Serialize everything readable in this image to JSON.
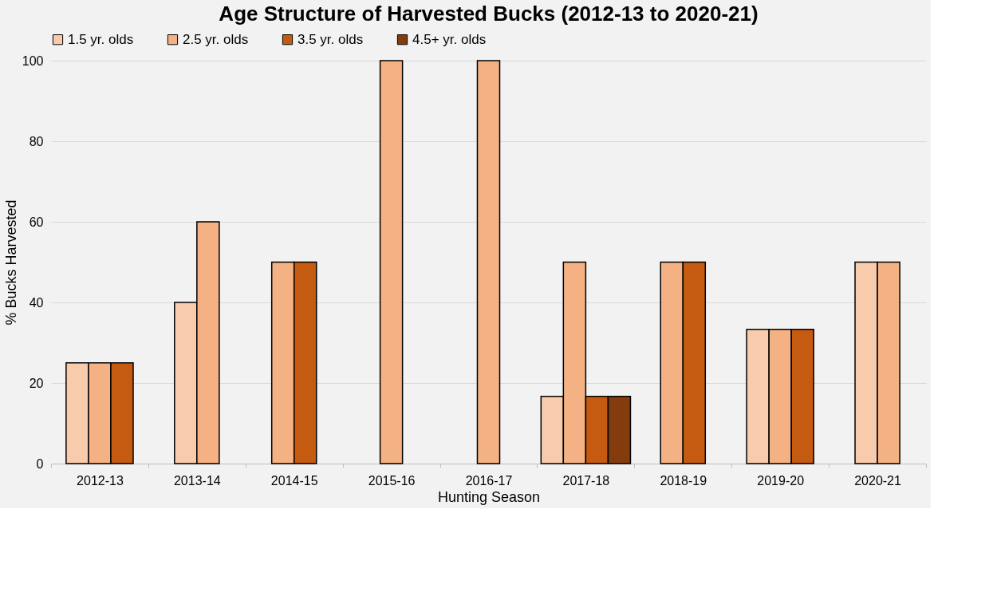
{
  "chart_data": {
    "type": "bar",
    "title": "Age Structure of Harvested Bucks (2012-13 to 2020-21)",
    "xlabel": "Hunting Season",
    "ylabel": "% Bucks Harvested",
    "categories": [
      "2012-13",
      "2013-14",
      "2014-15",
      "2015-16",
      "2016-17",
      "2017-18",
      "2018-19",
      "2019-20",
      "2020-21"
    ],
    "series": [
      {
        "name": "1.5 yr. olds",
        "color": "#f8cbad",
        "values": [
          25,
          40,
          null,
          null,
          null,
          16.7,
          null,
          33.3,
          50
        ]
      },
      {
        "name": "2.5 yr. olds",
        "color": "#f4b183",
        "values": [
          25,
          60,
          50,
          100,
          100,
          50,
          50,
          33.3,
          50
        ]
      },
      {
        "name": "3.5 yr. olds",
        "color": "#c55a11",
        "values": [
          25,
          null,
          50,
          null,
          null,
          16.7,
          50,
          33.3,
          null
        ]
      },
      {
        "name": "4.5+ yr. olds",
        "color": "#843c0c",
        "values": [
          null,
          null,
          null,
          null,
          null,
          16.7,
          null,
          null,
          null
        ]
      }
    ],
    "ylim": [
      0,
      100
    ],
    "yticks": [
      0,
      20,
      40,
      60,
      80,
      100
    ],
    "grid": "y",
    "legend": "top"
  }
}
